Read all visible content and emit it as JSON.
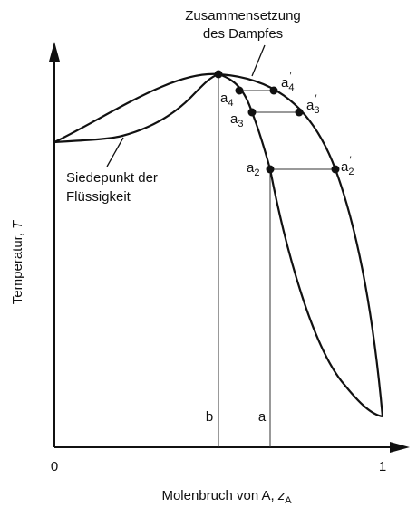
{
  "axes": {
    "x_title": "Molenbruch von A,",
    "x_var": "z",
    "x_var_sub": "A",
    "y_title": "Temperatur,",
    "y_var": "T",
    "x_ticks": [
      "0",
      "1"
    ]
  },
  "annotations": {
    "vapour_line1": "Zusammensetzung",
    "vapour_line2": "des Dampfes",
    "liquid_line1": "Siedepunkt der",
    "liquid_line2": "Flüssigkeit",
    "comp_b": "b",
    "comp_a": "a"
  },
  "points": [
    {
      "id": "a2",
      "label": "a",
      "sub": "2",
      "prime": false
    },
    {
      "id": "a2p",
      "label": "a",
      "sub": "2",
      "prime": true
    },
    {
      "id": "a3",
      "label": "a",
      "sub": "3",
      "prime": false
    },
    {
      "id": "a3p",
      "label": "a",
      "sub": "3",
      "prime": true
    },
    {
      "id": "a4",
      "label": "a",
      "sub": "4",
      "prime": false
    },
    {
      "id": "a4p",
      "label": "a",
      "sub": "4",
      "prime": true
    }
  ],
  "colors": {
    "ink": "#111111",
    "background": "#ffffff"
  }
}
